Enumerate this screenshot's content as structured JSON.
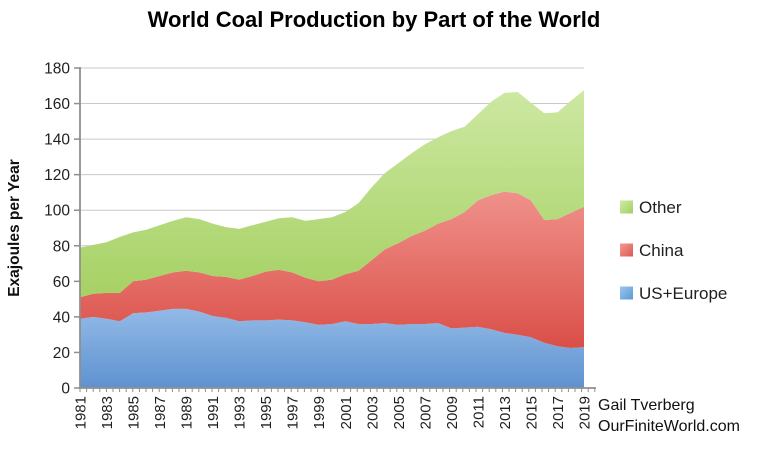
{
  "title": "World Coal Production by Part of the World",
  "attribution": {
    "line1": "Gail Tverberg",
    "line2": "OurFiniteWorld.com"
  },
  "chart_data": {
    "type": "area",
    "stacked": true,
    "title": "World Coal Production by Part of the World",
    "xlabel": "",
    "ylabel": "Exajoules per Year",
    "ylim": [
      0,
      180
    ],
    "y_ticks": [
      0,
      20,
      40,
      60,
      80,
      100,
      120,
      140,
      160,
      180
    ],
    "grid": true,
    "legend_position": "right",
    "x": [
      1981,
      1982,
      1983,
      1984,
      1985,
      1986,
      1987,
      1988,
      1989,
      1990,
      1991,
      1992,
      1993,
      1994,
      1995,
      1996,
      1997,
      1998,
      1999,
      2000,
      2001,
      2002,
      2003,
      2004,
      2005,
      2006,
      2007,
      2008,
      2009,
      2010,
      2011,
      2012,
      2013,
      2014,
      2015,
      2016,
      2017,
      2018,
      2019
    ],
    "x_tick_labels": [
      "1981",
      "1983",
      "1985",
      "1987",
      "1989",
      "1991",
      "1993",
      "1995",
      "1997",
      "1999",
      "2001",
      "2003",
      "2005",
      "2007",
      "2009",
      "2011",
      "2013",
      "2015",
      "2017",
      "2019"
    ],
    "series": [
      {
        "name": "US+Europe",
        "color_top": "#92bae7",
        "color_bottom": "#5e92cf",
        "legend_color_light": "#9cc5ec",
        "legend_color_dark": "#5b9bd5",
        "values": [
          39,
          40,
          39,
          37.5,
          42,
          42.5,
          43.5,
          44.5,
          44.5,
          43,
          40.5,
          39.5,
          37.5,
          38,
          38,
          38.5,
          38,
          37,
          35.5,
          36,
          37.5,
          36,
          36,
          36.5,
          35.5,
          36,
          36,
          36.5,
          33.5,
          34,
          34.5,
          33,
          31,
          30,
          28.5,
          25.5,
          23.5,
          22.5,
          23
        ]
      },
      {
        "name": "China",
        "color_top": "#f0918b",
        "color_bottom": "#da4f48",
        "legend_color_light": "#f29b95",
        "legend_color_dark": "#dd5750",
        "values": [
          12,
          13,
          14.5,
          16,
          18,
          18.5,
          19.5,
          20.5,
          21.5,
          22,
          22.5,
          23,
          23.5,
          25,
          27.5,
          28,
          27,
          25,
          24.5,
          25,
          26.5,
          30,
          36,
          41.5,
          46,
          49.5,
          52.5,
          56,
          61.5,
          65,
          71,
          75.5,
          79.5,
          79.5,
          77,
          69,
          71.5,
          76,
          79
        ]
      },
      {
        "name": "Other",
        "color_top": "#cde8a2",
        "color_bottom": "#a6d164",
        "legend_color_light": "#cfe9a6",
        "legend_color_dark": "#a3cf60",
        "values": [
          28,
          27.5,
          28.5,
          31.5,
          27.5,
          28,
          28.5,
          29,
          30,
          30,
          29.5,
          28,
          28.5,
          28.5,
          28,
          29,
          31,
          32,
          35,
          35,
          35,
          38,
          41,
          43,
          45,
          46.5,
          48.5,
          48.5,
          49.5,
          48,
          48.5,
          52.5,
          55.5,
          57,
          55,
          60,
          60,
          63,
          65.5
        ]
      }
    ],
    "legend_order": [
      "Other",
      "China",
      "US+Europe"
    ]
  }
}
